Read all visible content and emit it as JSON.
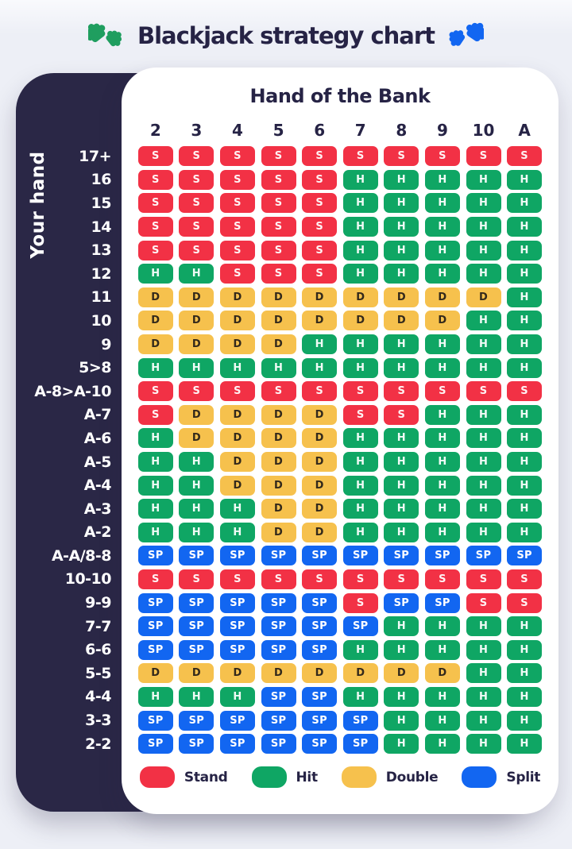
{
  "page": {
    "title": "Blackjack strategy chart",
    "bank_header": "Hand of the Bank",
    "side_label": "Your hand"
  },
  "icons": {
    "left": "puzzle-pieces-green",
    "right": "puzzle-pieces-blue",
    "green_color": "#1f9e5f",
    "blue_color": "#1266f1"
  },
  "colors": {
    "stand": "#f23145",
    "hit": "#0fa664",
    "double": "#f6c14d",
    "split": "#1266f1",
    "double_text": "#33291b",
    "navy": "#2a2746",
    "page_bg": "#edeff6",
    "card_bg": "#ffffff",
    "text_dark": "#262345"
  },
  "legend": [
    {
      "code": "S",
      "label": "Stand",
      "color": "#f23145"
    },
    {
      "code": "H",
      "label": "Hit",
      "color": "#0fa664"
    },
    {
      "code": "D",
      "label": "Double",
      "color": "#f6c14d"
    },
    {
      "code": "SP",
      "label": "Split",
      "color": "#1266f1"
    }
  ],
  "chart_data": {
    "type": "heatmap",
    "title": "Blackjack strategy chart",
    "xlabel": "Hand of the Bank",
    "ylabel": "Your hand",
    "legend_position": "bottom",
    "value_meanings": {
      "S": "Stand",
      "H": "Hit",
      "D": "Double",
      "SP": "Split"
    },
    "columns": [
      "2",
      "3",
      "4",
      "5",
      "6",
      "7",
      "8",
      "9",
      "10",
      "A"
    ],
    "rows": [
      {
        "label": "17+",
        "cells": [
          "S",
          "S",
          "S",
          "S",
          "S",
          "S",
          "S",
          "S",
          "S",
          "S"
        ]
      },
      {
        "label": "16",
        "cells": [
          "S",
          "S",
          "S",
          "S",
          "S",
          "H",
          "H",
          "H",
          "H",
          "H"
        ]
      },
      {
        "label": "15",
        "cells": [
          "S",
          "S",
          "S",
          "S",
          "S",
          "H",
          "H",
          "H",
          "H",
          "H"
        ]
      },
      {
        "label": "14",
        "cells": [
          "S",
          "S",
          "S",
          "S",
          "S",
          "H",
          "H",
          "H",
          "H",
          "H"
        ]
      },
      {
        "label": "13",
        "cells": [
          "S",
          "S",
          "S",
          "S",
          "S",
          "H",
          "H",
          "H",
          "H",
          "H"
        ]
      },
      {
        "label": "12",
        "cells": [
          "H",
          "H",
          "S",
          "S",
          "S",
          "H",
          "H",
          "H",
          "H",
          "H"
        ]
      },
      {
        "label": "11",
        "cells": [
          "D",
          "D",
          "D",
          "D",
          "D",
          "D",
          "D",
          "D",
          "D",
          "H"
        ]
      },
      {
        "label": "10",
        "cells": [
          "D",
          "D",
          "D",
          "D",
          "D",
          "D",
          "D",
          "D",
          "H",
          "H"
        ]
      },
      {
        "label": "9",
        "cells": [
          "D",
          "D",
          "D",
          "D",
          "H",
          "H",
          "H",
          "H",
          "H",
          "H"
        ]
      },
      {
        "label": "5>8",
        "cells": [
          "H",
          "H",
          "H",
          "H",
          "H",
          "H",
          "H",
          "H",
          "H",
          "H"
        ]
      },
      {
        "label": "A-8>A-10",
        "cells": [
          "S",
          "S",
          "S",
          "S",
          "S",
          "S",
          "S",
          "S",
          "S",
          "S"
        ]
      },
      {
        "label": "A-7",
        "cells": [
          "S",
          "D",
          "D",
          "D",
          "D",
          "S",
          "S",
          "H",
          "H",
          "H"
        ]
      },
      {
        "label": "A-6",
        "cells": [
          "H",
          "D",
          "D",
          "D",
          "D",
          "H",
          "H",
          "H",
          "H",
          "H"
        ]
      },
      {
        "label": "A-5",
        "cells": [
          "H",
          "H",
          "D",
          "D",
          "D",
          "H",
          "H",
          "H",
          "H",
          "H"
        ]
      },
      {
        "label": "A-4",
        "cells": [
          "H",
          "H",
          "D",
          "D",
          "D",
          "H",
          "H",
          "H",
          "H",
          "H"
        ]
      },
      {
        "label": "A-3",
        "cells": [
          "H",
          "H",
          "H",
          "D",
          "D",
          "H",
          "H",
          "H",
          "H",
          "H"
        ]
      },
      {
        "label": "A-2",
        "cells": [
          "H",
          "H",
          "H",
          "D",
          "D",
          "H",
          "H",
          "H",
          "H",
          "H"
        ]
      },
      {
        "label": "A-A/8-8",
        "cells": [
          "SP",
          "SP",
          "SP",
          "SP",
          "SP",
          "SP",
          "SP",
          "SP",
          "SP",
          "SP"
        ]
      },
      {
        "label": "10-10",
        "cells": [
          "S",
          "S",
          "S",
          "S",
          "S",
          "S",
          "S",
          "S",
          "S",
          "S"
        ]
      },
      {
        "label": "9-9",
        "cells": [
          "SP",
          "SP",
          "SP",
          "SP",
          "SP",
          "S",
          "SP",
          "SP",
          "S",
          "S"
        ]
      },
      {
        "label": "7-7",
        "cells": [
          "SP",
          "SP",
          "SP",
          "SP",
          "SP",
          "SP",
          "H",
          "H",
          "H",
          "H"
        ]
      },
      {
        "label": "6-6",
        "cells": [
          "SP",
          "SP",
          "SP",
          "SP",
          "SP",
          "H",
          "H",
          "H",
          "H",
          "H"
        ]
      },
      {
        "label": "5-5",
        "cells": [
          "D",
          "D",
          "D",
          "D",
          "D",
          "D",
          "D",
          "D",
          "H",
          "H"
        ]
      },
      {
        "label": "4-4",
        "cells": [
          "H",
          "H",
          "H",
          "SP",
          "SP",
          "H",
          "H",
          "H",
          "H",
          "H"
        ]
      },
      {
        "label": "3-3",
        "cells": [
          "SP",
          "SP",
          "SP",
          "SP",
          "SP",
          "SP",
          "H",
          "H",
          "H",
          "H"
        ]
      },
      {
        "label": "2-2",
        "cells": [
          "SP",
          "SP",
          "SP",
          "SP",
          "SP",
          "SP",
          "H",
          "H",
          "H",
          "H"
        ]
      }
    ]
  }
}
